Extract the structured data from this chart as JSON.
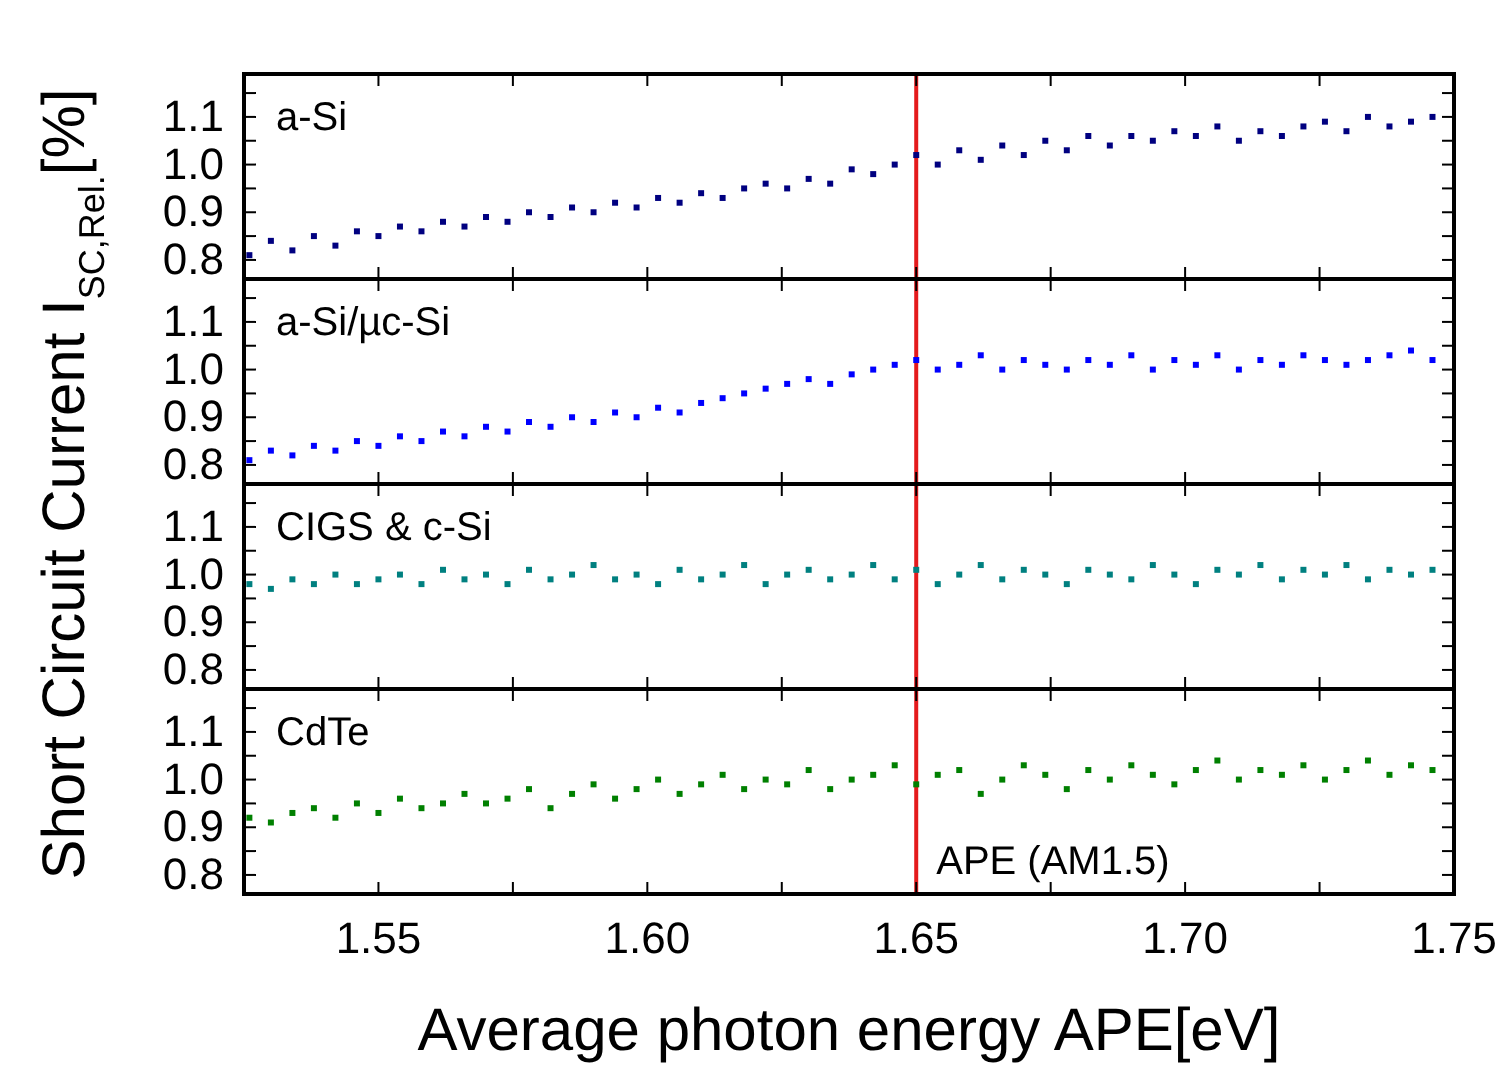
{
  "chart_data": [
    {
      "type": "scatter",
      "title": "a-Si",
      "ylabel": "Short Circuit Current I$_{SC,Rel.}$[%]",
      "marker": "square",
      "grid": false,
      "tick_labels": "y",
      "x": [
        1.526,
        1.53,
        1.534,
        1.538,
        1.542,
        1.546,
        1.55,
        1.554,
        1.558,
        1.562,
        1.566,
        1.57,
        1.574,
        1.578,
        1.582,
        1.586,
        1.59,
        1.594,
        1.598,
        1.602,
        1.606,
        1.61,
        1.614,
        1.618,
        1.622,
        1.626,
        1.63,
        1.634,
        1.638,
        1.642,
        1.646,
        1.65,
        1.654,
        1.658,
        1.662,
        1.666,
        1.67,
        1.674,
        1.678,
        1.682,
        1.686,
        1.69,
        1.694,
        1.698,
        1.702,
        1.706,
        1.71,
        1.714,
        1.718,
        1.722,
        1.726,
        1.73,
        1.734,
        1.738,
        1.742,
        1.746
      ],
      "series": [
        {
          "color": "#000080",
          "values": [
            0.81,
            0.84,
            0.82,
            0.85,
            0.83,
            0.86,
            0.85,
            0.87,
            0.86,
            0.88,
            0.87,
            0.89,
            0.88,
            0.9,
            0.89,
            0.91,
            0.9,
            0.92,
            0.91,
            0.93,
            0.92,
            0.94,
            0.93,
            0.95,
            0.96,
            0.95,
            0.97,
            0.96,
            0.99,
            0.98,
            1.0,
            1.02,
            1.0,
            1.03,
            1.01,
            1.04,
            1.02,
            1.05,
            1.03,
            1.06,
            1.04,
            1.06,
            1.05,
            1.07,
            1.06,
            1.08,
            1.05,
            1.07,
            1.06,
            1.08,
            1.09,
            1.07,
            1.1,
            1.08,
            1.09,
            1.1
          ]
        }
      ],
      "xlim": [
        1.525,
        1.75
      ],
      "xticks": [
        1.55,
        1.575,
        1.6,
        1.625,
        1.65,
        1.675,
        1.7,
        1.725,
        1.75
      ],
      "ylim": [
        0.76,
        1.19
      ],
      "yticks": [
        {
          "value": 0.8,
          "label": "0.8"
        },
        {
          "value": 0.85,
          "label": null
        },
        {
          "value": 0.9,
          "label": "0.9"
        },
        {
          "value": 0.95,
          "label": null
        },
        {
          "value": 1.0,
          "label": "1.0"
        },
        {
          "value": 1.05,
          "label": null
        },
        {
          "value": 1.1,
          "label": "1.1"
        },
        {
          "value": 1.15,
          "label": null
        }
      ],
      "ref_lines": [
        {
          "axis": "x",
          "value": 1.65,
          "color": "#e41a1c"
        }
      ]
    },
    {
      "type": "scatter",
      "title": "a-Si/µc-Si",
      "marker": "square",
      "grid": false,
      "tick_labels": "y",
      "x": [
        1.526,
        1.53,
        1.534,
        1.538,
        1.542,
        1.546,
        1.55,
        1.554,
        1.558,
        1.562,
        1.566,
        1.57,
        1.574,
        1.578,
        1.582,
        1.586,
        1.59,
        1.594,
        1.598,
        1.602,
        1.606,
        1.61,
        1.614,
        1.618,
        1.622,
        1.626,
        1.63,
        1.634,
        1.638,
        1.642,
        1.646,
        1.65,
        1.654,
        1.658,
        1.662,
        1.666,
        1.67,
        1.674,
        1.678,
        1.682,
        1.686,
        1.69,
        1.694,
        1.698,
        1.702,
        1.706,
        1.71,
        1.714,
        1.718,
        1.722,
        1.726,
        1.73,
        1.734,
        1.738,
        1.742,
        1.746
      ],
      "series": [
        {
          "color": "#0000ff",
          "values": [
            0.81,
            0.83,
            0.82,
            0.84,
            0.83,
            0.85,
            0.84,
            0.86,
            0.85,
            0.87,
            0.86,
            0.88,
            0.87,
            0.89,
            0.88,
            0.9,
            0.89,
            0.91,
            0.9,
            0.92,
            0.91,
            0.93,
            0.94,
            0.95,
            0.96,
            0.97,
            0.98,
            0.97,
            0.99,
            1.0,
            1.01,
            1.02,
            1.0,
            1.01,
            1.03,
            1.0,
            1.02,
            1.01,
            1.0,
            1.02,
            1.01,
            1.03,
            1.0,
            1.02,
            1.01,
            1.03,
            1.0,
            1.02,
            1.01,
            1.03,
            1.02,
            1.01,
            1.02,
            1.03,
            1.04,
            1.02
          ]
        }
      ],
      "xlim": [
        1.525,
        1.75
      ],
      "xticks": [
        1.55,
        1.575,
        1.6,
        1.625,
        1.65,
        1.675,
        1.7,
        1.725,
        1.75
      ],
      "ylim": [
        0.76,
        1.19
      ],
      "yticks": [
        {
          "value": 0.8,
          "label": "0.8"
        },
        {
          "value": 0.85,
          "label": null
        },
        {
          "value": 0.9,
          "label": "0.9"
        },
        {
          "value": 0.95,
          "label": null
        },
        {
          "value": 1.0,
          "label": "1.0"
        },
        {
          "value": 1.05,
          "label": null
        },
        {
          "value": 1.1,
          "label": "1.1"
        },
        {
          "value": 1.15,
          "label": null
        }
      ],
      "ref_lines": [
        {
          "axis": "x",
          "value": 1.65,
          "color": "#e41a1c"
        }
      ]
    },
    {
      "type": "scatter",
      "title": "CIGS & c-Si",
      "marker": "square",
      "grid": false,
      "tick_labels": "y",
      "x": [
        1.526,
        1.53,
        1.534,
        1.538,
        1.542,
        1.546,
        1.55,
        1.554,
        1.558,
        1.562,
        1.566,
        1.57,
        1.574,
        1.578,
        1.582,
        1.586,
        1.59,
        1.594,
        1.598,
        1.602,
        1.606,
        1.61,
        1.614,
        1.618,
        1.622,
        1.626,
        1.63,
        1.634,
        1.638,
        1.642,
        1.646,
        1.65,
        1.654,
        1.658,
        1.662,
        1.666,
        1.67,
        1.674,
        1.678,
        1.682,
        1.686,
        1.69,
        1.694,
        1.698,
        1.702,
        1.706,
        1.71,
        1.714,
        1.718,
        1.722,
        1.726,
        1.73,
        1.734,
        1.738,
        1.742,
        1.746
      ],
      "series": [
        {
          "color": "#008080",
          "values": [
            0.98,
            0.97,
            0.99,
            0.98,
            1.0,
            0.98,
            0.99,
            1.0,
            0.98,
            1.01,
            0.99,
            1.0,
            0.98,
            1.01,
            0.99,
            1.0,
            1.02,
            0.99,
            1.0,
            0.98,
            1.01,
            0.99,
            1.0,
            1.02,
            0.98,
            1.0,
            1.01,
            0.99,
            1.0,
            1.02,
            0.99,
            1.01,
            0.98,
            1.0,
            1.02,
            0.99,
            1.01,
            1.0,
            0.98,
            1.01,
            1.0,
            0.99,
            1.02,
            1.0,
            0.98,
            1.01,
            1.0,
            1.02,
            0.99,
            1.01,
            1.0,
            1.02,
            0.99,
            1.01,
            1.0,
            1.01
          ]
        }
      ],
      "xlim": [
        1.525,
        1.75
      ],
      "xticks": [
        1.55,
        1.575,
        1.6,
        1.625,
        1.65,
        1.675,
        1.7,
        1.725,
        1.75
      ],
      "ylim": [
        0.76,
        1.19
      ],
      "yticks": [
        {
          "value": 0.8,
          "label": "0.8"
        },
        {
          "value": 0.85,
          "label": null
        },
        {
          "value": 0.9,
          "label": "0.9"
        },
        {
          "value": 0.95,
          "label": null
        },
        {
          "value": 1.0,
          "label": "1.0"
        },
        {
          "value": 1.05,
          "label": null
        },
        {
          "value": 1.1,
          "label": "1.1"
        },
        {
          "value": 1.15,
          "label": null
        }
      ],
      "ref_lines": [
        {
          "axis": "x",
          "value": 1.65,
          "color": "#e41a1c"
        }
      ]
    },
    {
      "type": "scatter",
      "title": "CdTe",
      "xlabel": "Average photon energy APE[eV]",
      "marker": "square",
      "grid": false,
      "x": [
        1.526,
        1.53,
        1.534,
        1.538,
        1.542,
        1.546,
        1.55,
        1.554,
        1.558,
        1.562,
        1.566,
        1.57,
        1.574,
        1.578,
        1.582,
        1.586,
        1.59,
        1.594,
        1.598,
        1.602,
        1.606,
        1.61,
        1.614,
        1.618,
        1.622,
        1.626,
        1.63,
        1.634,
        1.638,
        1.642,
        1.646,
        1.65,
        1.654,
        1.658,
        1.662,
        1.666,
        1.67,
        1.674,
        1.678,
        1.682,
        1.686,
        1.69,
        1.694,
        1.698,
        1.702,
        1.706,
        1.71,
        1.714,
        1.718,
        1.722,
        1.726,
        1.73,
        1.734,
        1.738,
        1.742,
        1.746
      ],
      "series": [
        {
          "color": "#008000",
          "values": [
            0.92,
            0.91,
            0.93,
            0.94,
            0.92,
            0.95,
            0.93,
            0.96,
            0.94,
            0.95,
            0.97,
            0.95,
            0.96,
            0.98,
            0.94,
            0.97,
            0.99,
            0.96,
            0.98,
            1.0,
            0.97,
            0.99,
            1.01,
            0.98,
            1.0,
            0.99,
            1.02,
            0.98,
            1.0,
            1.01,
            1.03,
            0.99,
            1.01,
            1.02,
            0.97,
            1.0,
            1.03,
            1.01,
            0.98,
            1.02,
            1.0,
            1.03,
            1.01,
            0.99,
            1.02,
            1.04,
            1.0,
            1.02,
            1.01,
            1.03,
            1.0,
            1.02,
            1.04,
            1.01,
            1.03,
            1.02
          ]
        }
      ],
      "xlim": [
        1.525,
        1.75
      ],
      "xticks": [
        {
          "value": 1.55,
          "label": "1.55"
        },
        {
          "value": 1.575,
          "label": null
        },
        {
          "value": 1.6,
          "label": "1.60"
        },
        {
          "value": 1.625,
          "label": null
        },
        {
          "value": 1.65,
          "label": "1.65"
        },
        {
          "value": 1.675,
          "label": null
        },
        {
          "value": 1.7,
          "label": "1.70"
        },
        {
          "value": 1.725,
          "label": null
        },
        {
          "value": 1.75,
          "label": "1.75"
        }
      ],
      "ylim": [
        0.76,
        1.19
      ],
      "yticks": [
        {
          "value": 0.8,
          "label": "0.8"
        },
        {
          "value": 0.85,
          "label": null
        },
        {
          "value": 0.9,
          "label": "0.9"
        },
        {
          "value": 0.95,
          "label": null
        },
        {
          "value": 1.0,
          "label": "1.0"
        },
        {
          "value": 1.05,
          "label": null
        },
        {
          "value": 1.1,
          "label": "1.1"
        },
        {
          "value": 1.15,
          "label": null
        }
      ],
      "ref_lines": [
        {
          "axis": "x",
          "value": 1.65,
          "color": "#e41a1c",
          "label": "APE (AM1.5)"
        }
      ]
    }
  ]
}
